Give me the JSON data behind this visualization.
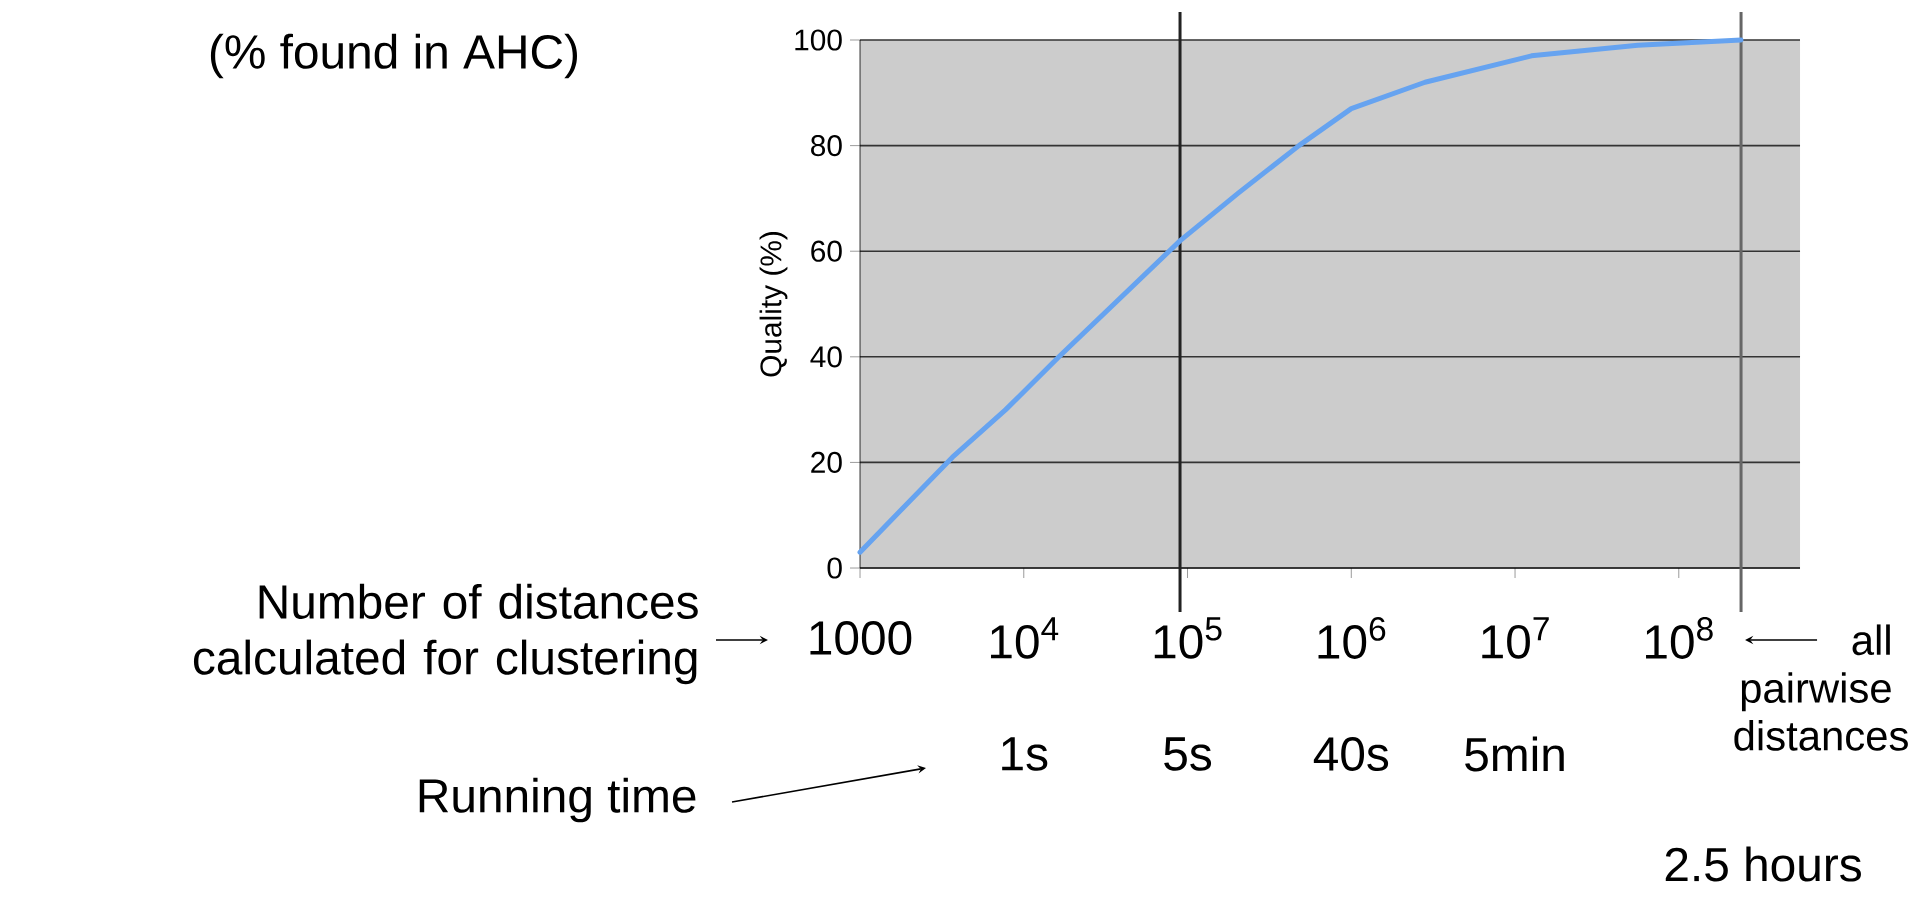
{
  "chart_data": {
    "type": "line",
    "subtitle": "(% found in AHC)",
    "ylabel": "Quality (%)",
    "log": "x",
    "xlim": [
      1000,
      550000000
    ],
    "xticks": [
      {
        "value": 1000,
        "label": "1000"
      },
      {
        "value": 10000,
        "label": "10$^{4}$"
      },
      {
        "value": 100000,
        "label": "10$^{5}$"
      },
      {
        "value": 1000000,
        "label": "10$^{6}$"
      },
      {
        "value": 10000000,
        "label": "10$^{7}$"
      },
      {
        "value": 100000000,
        "label": "10$^{8}$"
      }
    ],
    "ylim": [
      0,
      100
    ],
    "yticks": [
      0,
      20,
      40,
      60,
      80,
      100
    ],
    "grid": "y",
    "marker": "none",
    "line_style": "solid",
    "series": [
      {
        "color": "#66a3f0",
        "x": [
          1000,
          3670,
          7760,
          16400,
          90200,
          204000,
          479000,
          1000000,
          2820000,
          12600000,
          56200000,
          240000000
        ],
        "values": [
          3,
          21,
          30,
          40,
          62,
          71,
          80,
          87,
          92,
          97,
          99,
          100
        ]
      }
    ],
    "ref_lines": [
      {
        "axis": "x",
        "value": 90000,
        "color": "#222222"
      },
      {
        "axis": "x",
        "value": 240000000,
        "label": "all pairwise distances",
        "color": "#666666"
      }
    ],
    "annotations": [
      "Number of distances calculated for clustering",
      "Running time",
      "1s",
      "5s",
      "40s",
      "5min",
      "2.5 hours"
    ]
  }
}
